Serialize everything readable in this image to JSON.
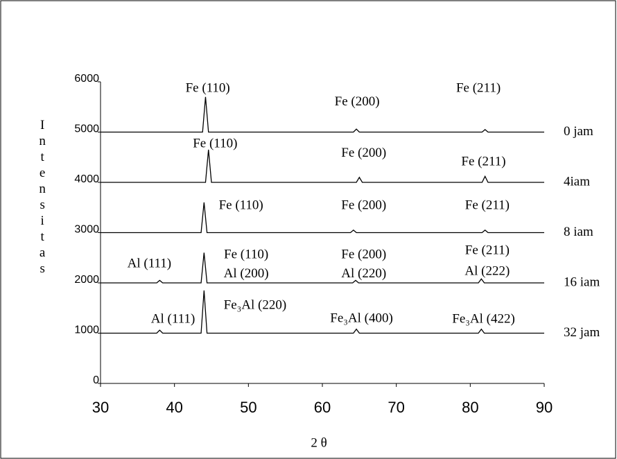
{
  "chart_data": {
    "type": "line",
    "x_label": "2 θ",
    "y_label": "Intensitas",
    "xlim": [
      30,
      90
    ],
    "xticks": [
      30,
      40,
      50,
      60,
      70,
      80,
      90
    ],
    "ylim": [
      0,
      6000
    ],
    "yticks": [
      0,
      1000,
      2000,
      3000,
      4000,
      5000,
      6000
    ],
    "series": [
      {
        "name": "0 jam",
        "color": "#000000",
        "x": [
          30,
          43.8,
          44.2,
          44.6,
          64.2,
          64.6,
          65,
          81.6,
          82,
          82.4,
          90
        ],
        "values": [
          5000,
          5000,
          5700,
          5000,
          5000,
          5060,
          5000,
          5000,
          5050,
          5000,
          5000
        ]
      },
      {
        "name": "4iam",
        "color": "#000000",
        "x": [
          30,
          44.2,
          44.6,
          45,
          64.6,
          65,
          65.4,
          81.6,
          82,
          82.4,
          90
        ],
        "values": [
          4000,
          4000,
          4650,
          4000,
          4000,
          4100,
          4000,
          4000,
          4120,
          4000,
          4000
        ]
      },
      {
        "name": "8 iam",
        "color": "#000000",
        "x": [
          30,
          43.6,
          44,
          44.4,
          63.8,
          64.2,
          64.6,
          81.6,
          82,
          82.4,
          90
        ],
        "values": [
          3000,
          3000,
          3600,
          3000,
          3000,
          3050,
          3000,
          3000,
          3050,
          3000,
          3000
        ]
      },
      {
        "name": "16 iam",
        "color": "#000000",
        "x": [
          30,
          37.6,
          38,
          38.4,
          43.6,
          44,
          44.4,
          64.1,
          64.5,
          64.9,
          81.1,
          81.5,
          81.9,
          90
        ],
        "values": [
          2000,
          2000,
          2050,
          2000,
          2000,
          2600,
          2000,
          2000,
          2050,
          2000,
          2000,
          2080,
          2000,
          2000
        ]
      },
      {
        "name": "32 jam",
        "color": "#000000",
        "x": [
          30,
          37.6,
          38,
          38.4,
          43.6,
          44,
          44.4,
          64.2,
          64.6,
          65,
          81.1,
          81.5,
          81.9,
          90
        ],
        "values": [
          1000,
          1000,
          1060,
          1000,
          1000,
          1850,
          1000,
          1000,
          1080,
          1000,
          1000,
          1080,
          1000,
          1000
        ]
      }
    ],
    "annotations": [
      {
        "text": "Fe (110)",
        "x": 44.5,
        "y": 5860
      },
      {
        "text": "Fe (200)",
        "x": 64.7,
        "y": 5590
      },
      {
        "text": "Fe (211)",
        "x": 81.1,
        "y": 5860
      },
      {
        "text": "Fe (110)",
        "x": 45.5,
        "y": 4760
      },
      {
        "text": "Fe (200)",
        "x": 65.6,
        "y": 4570
      },
      {
        "text": "Fe (211)",
        "x": 81.8,
        "y": 4400
      },
      {
        "text": "Fe (110)",
        "x": 49.0,
        "y": 3530
      },
      {
        "text": "Fe (200)",
        "x": 65.6,
        "y": 3530
      },
      {
        "text": "Fe (211)",
        "x": 82.3,
        "y": 3530
      },
      {
        "text": "Al (111)",
        "x": 36.6,
        "y": 2370
      },
      {
        "text": "Fe (110)",
        "x": 49.7,
        "y": 2550
      },
      {
        "text": "Al (200)",
        "x": 49.7,
        "y": 2170
      },
      {
        "text": "Fe (200)",
        "x": 65.6,
        "y": 2550
      },
      {
        "text": "Al (220)",
        "x": 65.6,
        "y": 2170
      },
      {
        "text": "Fe (211)",
        "x": 82.3,
        "y": 2630
      },
      {
        "text": "Al (222)",
        "x": 82.3,
        "y": 2220
      },
      {
        "text": "Al (111)",
        "x": 39.8,
        "y": 1270
      },
      {
        "text": "Fe₃Al (220)",
        "x": 50.9,
        "y": 1540
      },
      {
        "text": "Fe₃Al (400)",
        "x": 65.3,
        "y": 1280
      },
      {
        "text": "Fe₃Al (422)",
        "x": 81.8,
        "y": 1270
      }
    ]
  }
}
